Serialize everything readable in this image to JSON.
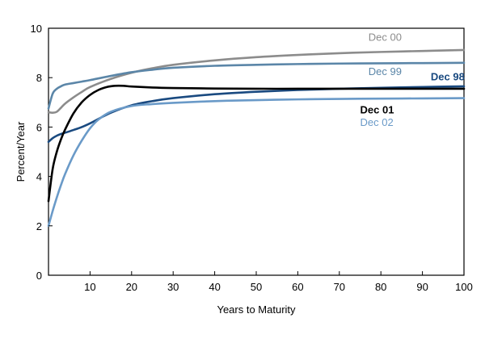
{
  "chart_data": {
    "type": "line",
    "title": "",
    "xlabel": "Years to Maturity",
    "ylabel": "Percent/Year",
    "xlim": [
      0,
      100
    ],
    "ylim": [
      0,
      10
    ],
    "x_ticks": [
      10,
      20,
      30,
      40,
      50,
      60,
      70,
      80,
      90,
      100
    ],
    "y_ticks": [
      0,
      2,
      4,
      6,
      8,
      10
    ],
    "grid": false,
    "series": [
      {
        "name": "Dec 00",
        "label": "Dec 00",
        "color": "#8c8c8c",
        "label_bold": false,
        "label_anchor": [
          77,
          9.5
        ],
        "x": [
          0,
          1,
          2,
          3,
          4,
          6,
          8,
          10,
          15,
          20,
          25,
          30,
          40,
          50,
          60,
          70,
          80,
          90,
          100
        ],
        "y": [
          6.6,
          6.58,
          6.62,
          6.78,
          6.95,
          7.2,
          7.42,
          7.62,
          7.95,
          8.2,
          8.38,
          8.52,
          8.7,
          8.83,
          8.92,
          8.99,
          9.04,
          9.08,
          9.12
        ]
      },
      {
        "name": "Dec 99",
        "label": "Dec 99",
        "color": "#5b86a8",
        "label_bold": false,
        "label_anchor": [
          77,
          8.1
        ],
        "x": [
          0,
          1,
          2,
          3,
          4,
          6,
          8,
          10,
          15,
          20,
          25,
          30,
          40,
          50,
          60,
          70,
          80,
          90,
          100
        ],
        "y": [
          6.75,
          7.35,
          7.55,
          7.65,
          7.72,
          7.78,
          7.84,
          7.9,
          8.07,
          8.22,
          8.32,
          8.4,
          8.48,
          8.52,
          8.55,
          8.57,
          8.58,
          8.59,
          8.6
        ]
      },
      {
        "name": "Dec 98",
        "label": "Dec 98",
        "color": "#1a4a80",
        "label_bold": true,
        "label_anchor": [
          92,
          7.9
        ],
        "x": [
          0,
          1,
          2,
          3,
          4,
          6,
          8,
          10,
          15,
          20,
          25,
          30,
          40,
          50,
          60,
          70,
          80,
          90,
          100
        ],
        "y": [
          5.4,
          5.55,
          5.65,
          5.72,
          5.77,
          5.88,
          6.0,
          6.15,
          6.58,
          6.88,
          7.05,
          7.17,
          7.33,
          7.43,
          7.5,
          7.55,
          7.59,
          7.62,
          7.65
        ]
      },
      {
        "name": "Dec 01",
        "label": "Dec 01",
        "color": "#000000",
        "label_bold": true,
        "label_anchor": [
          75,
          6.55
        ],
        "x": [
          0,
          1,
          2,
          3,
          4,
          6,
          8,
          10,
          12,
          14,
          16,
          18,
          20,
          25,
          30,
          40,
          50,
          60,
          70,
          80,
          90,
          100
        ],
        "y": [
          3.0,
          4.3,
          5.0,
          5.5,
          5.9,
          6.55,
          7.0,
          7.3,
          7.5,
          7.62,
          7.67,
          7.67,
          7.64,
          7.6,
          7.58,
          7.56,
          7.55,
          7.55,
          7.55,
          7.55,
          7.55,
          7.55
        ]
      },
      {
        "name": "Dec 02",
        "label": "Dec 02",
        "color": "#6a9ac8",
        "label_bold": false,
        "label_anchor": [
          75,
          6.05
        ],
        "x": [
          0,
          1,
          2,
          3,
          4,
          6,
          8,
          10,
          12,
          15,
          20,
          25,
          30,
          40,
          50,
          60,
          70,
          80,
          90,
          100
        ],
        "y": [
          2.0,
          2.6,
          3.15,
          3.65,
          4.1,
          4.85,
          5.45,
          5.95,
          6.3,
          6.62,
          6.85,
          6.93,
          6.98,
          7.05,
          7.09,
          7.12,
          7.14,
          7.15,
          7.16,
          7.17
        ]
      }
    ]
  }
}
